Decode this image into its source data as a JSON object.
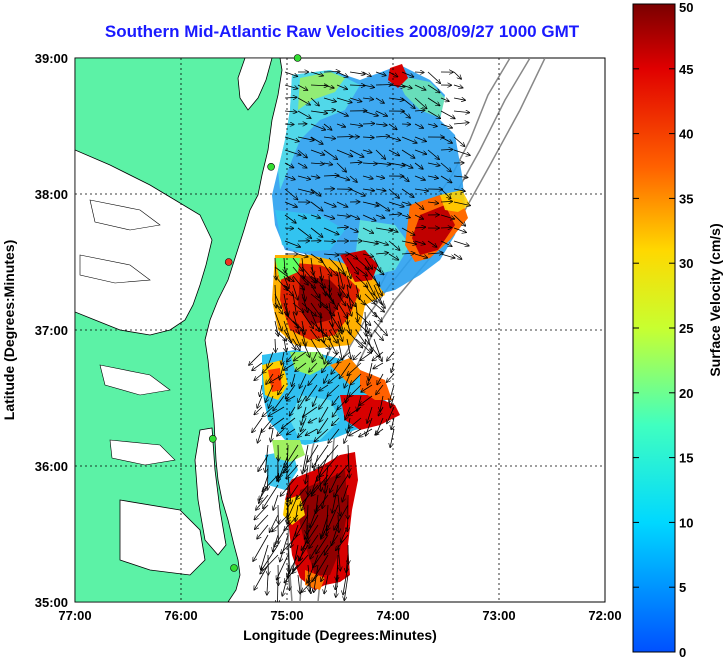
{
  "title": "Southern Mid-Atlantic Raw Velocities 2008/09/27 1000 GMT",
  "x_axis": {
    "label": "Longitude (Degrees:Minutes)",
    "ticks": [
      "77:00",
      "76:00",
      "75:00",
      "74:00",
      "73:00",
      "72:00"
    ]
  },
  "y_axis": {
    "label": "Latitude (Degrees:Minutes)",
    "ticks": [
      "39:00",
      "38:00",
      "37:00",
      "36:00",
      "35:00"
    ]
  },
  "colorbar": {
    "label": "Surface Velocity (cm/s)",
    "ticks": [
      "50",
      "45",
      "40",
      "35",
      "30",
      "25",
      "20",
      "15",
      "10",
      "5",
      "0"
    ],
    "range": [
      0,
      50
    ]
  },
  "map_extent": {
    "lon": [
      -77,
      -72
    ],
    "lat": [
      35,
      39
    ]
  },
  "colors": {
    "land": "#5cf2a6",
    "title": "#1a1aff",
    "site_active": "#33dd33",
    "site_inactive": "#ee3322"
  },
  "stations": [
    {
      "lon": -74.9,
      "lat": 39.0,
      "status": "active"
    },
    {
      "lon": -75.15,
      "lat": 38.2,
      "status": "active"
    },
    {
      "lon": -75.55,
      "lat": 37.5,
      "status": "inactive"
    },
    {
      "lon": -75.7,
      "lat": 36.2,
      "status": "active"
    },
    {
      "lon": -75.5,
      "lat": 35.25,
      "status": "active"
    }
  ]
}
